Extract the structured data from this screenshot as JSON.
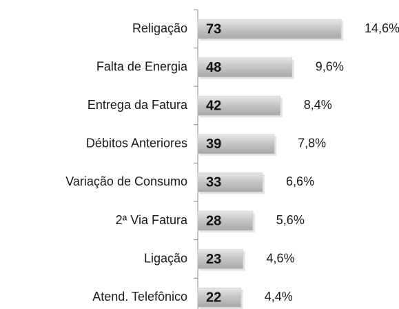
{
  "chart_data": {
    "type": "hbar",
    "categories": [
      "Religação",
      "Falta de Energia",
      "Entrega da Fatura",
      "Débitos Anteriores",
      "Variação de Consumo",
      "2ª Via Fatura",
      "Ligação",
      "Atend. Telefônico"
    ],
    "values": [
      73,
      48,
      42,
      39,
      33,
      28,
      23,
      22
    ],
    "share_labels": [
      "14,6%",
      "9,6%",
      "8,4%",
      "7,8%",
      "6,6%",
      "5,6%",
      "4,6%",
      "4,4%"
    ],
    "color": "#c8c8c8",
    "xlim": [
      0,
      100
    ]
  }
}
